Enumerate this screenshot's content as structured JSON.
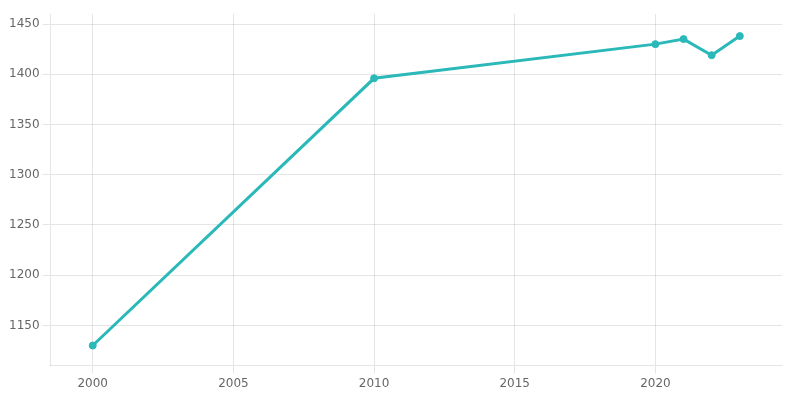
{
  "chart_data": {
    "type": "line",
    "x": [
      2000,
      2010,
      2020,
      2021,
      2022,
      2023
    ],
    "values": [
      1130,
      1396,
      1430,
      1435,
      1419,
      1438
    ],
    "color": "#2ab8b8",
    "marker": "circle",
    "xlim": [
      1998.5,
      2024.5
    ],
    "xticks": [
      2000,
      2005,
      2010,
      2015,
      2020
    ],
    "ylim": [
      1110,
      1460
    ],
    "yticks": [
      1150,
      1200,
      1250,
      1300,
      1350,
      1400,
      1450
    ],
    "grid": true
  }
}
